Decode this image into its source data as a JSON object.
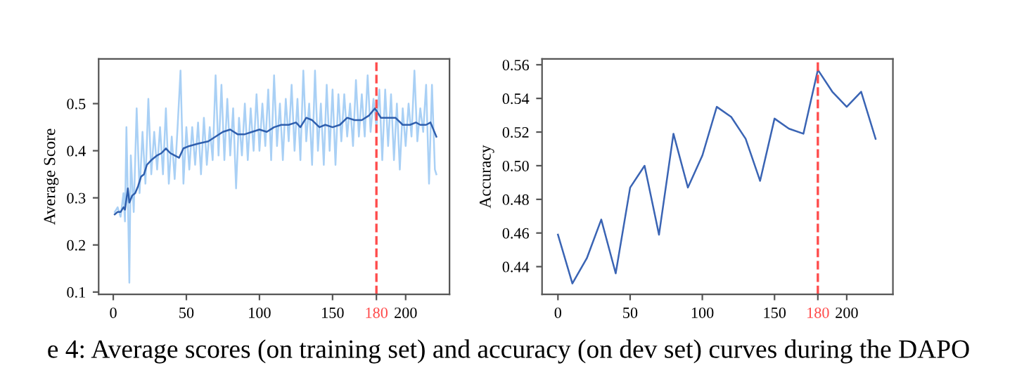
{
  "chart_data": [
    {
      "type": "line",
      "ylabel": "Average Score",
      "xlim": [
        -10,
        230
      ],
      "ylim": [
        0.095,
        0.595
      ],
      "xticks": [
        0,
        50,
        100,
        150,
        180,
        200
      ],
      "yticks": [
        0.1,
        0.2,
        0.3,
        0.4,
        0.5
      ],
      "grid": false,
      "legend": false,
      "ref_lines": [
        {
          "axis": "x",
          "value": 180,
          "color": "#ff4b4b",
          "line_style": "dashed"
        }
      ],
      "series": [
        {
          "color": "#a9d0f5",
          "x": [
            1,
            3,
            5,
            7,
            8,
            9,
            10,
            11,
            12,
            14,
            16,
            18,
            20,
            22,
            24,
            26,
            28,
            30,
            32,
            34,
            36,
            38,
            40,
            42,
            44,
            46,
            48,
            50,
            52,
            54,
            56,
            58,
            60,
            62,
            64,
            66,
            68,
            70,
            72,
            74,
            76,
            78,
            80,
            82,
            84,
            86,
            88,
            90,
            92,
            94,
            96,
            98,
            100,
            102,
            104,
            106,
            108,
            110,
            112,
            114,
            116,
            118,
            120,
            122,
            124,
            126,
            128,
            130,
            132,
            134,
            136,
            138,
            140,
            142,
            144,
            146,
            148,
            150,
            152,
            154,
            156,
            158,
            160,
            162,
            164,
            166,
            168,
            170,
            172,
            174,
            176,
            178,
            180,
            182,
            184,
            186,
            188,
            190,
            192,
            194,
            196,
            198,
            200,
            202,
            204,
            206,
            208,
            210,
            212,
            214,
            216,
            218,
            220,
            221
          ],
          "values": [
            0.27,
            0.28,
            0.26,
            0.31,
            0.25,
            0.45,
            0.3,
            0.12,
            0.39,
            0.27,
            0.49,
            0.31,
            0.44,
            0.33,
            0.51,
            0.35,
            0.44,
            0.36,
            0.45,
            0.35,
            0.49,
            0.33,
            0.43,
            0.34,
            0.45,
            0.57,
            0.33,
            0.45,
            0.36,
            0.45,
            0.37,
            0.46,
            0.35,
            0.47,
            0.37,
            0.45,
            0.38,
            0.56,
            0.39,
            0.54,
            0.38,
            0.51,
            0.39,
            0.49,
            0.32,
            0.47,
            0.39,
            0.5,
            0.38,
            0.49,
            0.4,
            0.52,
            0.4,
            0.5,
            0.41,
            0.53,
            0.38,
            0.56,
            0.41,
            0.5,
            0.38,
            0.51,
            0.42,
            0.54,
            0.4,
            0.51,
            0.38,
            0.57,
            0.42,
            0.5,
            0.37,
            0.57,
            0.4,
            0.5,
            0.37,
            0.54,
            0.4,
            0.53,
            0.37,
            0.52,
            0.42,
            0.52,
            0.43,
            0.5,
            0.41,
            0.55,
            0.43,
            0.52,
            0.43,
            0.56,
            0.44,
            0.51,
            0.45,
            0.53,
            0.38,
            0.53,
            0.41,
            0.52,
            0.38,
            0.5,
            0.36,
            0.49,
            0.41,
            0.5,
            0.43,
            0.57,
            0.42,
            0.49,
            0.44,
            0.54,
            0.33,
            0.54,
            0.36,
            0.35
          ]
        },
        {
          "color": "#2f5fae",
          "x": [
            1,
            3,
            5,
            7,
            8,
            10,
            11,
            13,
            15,
            17,
            19,
            21,
            23,
            26,
            30,
            33,
            36,
            39,
            42,
            45,
            48,
            52,
            58,
            65,
            70,
            75,
            80,
            85,
            90,
            95,
            100,
            105,
            110,
            115,
            120,
            125,
            128,
            132,
            136,
            141,
            145,
            150,
            155,
            160,
            165,
            170,
            175,
            179,
            183,
            188,
            193,
            198,
            203,
            207,
            210,
            214,
            217,
            221
          ],
          "values": [
            0.265,
            0.27,
            0.27,
            0.28,
            0.275,
            0.32,
            0.29,
            0.305,
            0.31,
            0.325,
            0.345,
            0.35,
            0.37,
            0.38,
            0.39,
            0.395,
            0.405,
            0.395,
            0.39,
            0.385,
            0.405,
            0.41,
            0.415,
            0.42,
            0.43,
            0.44,
            0.445,
            0.435,
            0.435,
            0.44,
            0.445,
            0.44,
            0.45,
            0.455,
            0.455,
            0.46,
            0.45,
            0.47,
            0.465,
            0.45,
            0.455,
            0.45,
            0.455,
            0.47,
            0.465,
            0.465,
            0.475,
            0.49,
            0.47,
            0.47,
            0.47,
            0.455,
            0.455,
            0.46,
            0.455,
            0.455,
            0.46,
            0.43
          ]
        }
      ]
    },
    {
      "type": "line",
      "ylabel": "Accuracy",
      "xlim": [
        -11,
        232
      ],
      "ylim": [
        0.4235,
        0.5635
      ],
      "xticks": [
        0,
        50,
        100,
        150,
        180,
        200
      ],
      "yticks": [
        {
          "value": 0.44,
          "label": "0.44"
        },
        {
          "value": 0.46,
          "label": "0.46"
        },
        {
          "value": 0.48,
          "label": "0.48"
        },
        {
          "value": 0.5,
          "label": "0.50"
        },
        {
          "value": 0.52,
          "label": "0.52"
        },
        {
          "value": 0.54,
          "label": "0.54"
        },
        {
          "value": 0.56,
          "label": "0.56"
        }
      ],
      "grid": false,
      "legend": false,
      "ref_lines": [
        {
          "axis": "x",
          "value": 180,
          "color": "#ff4b4b",
          "line_style": "dashed"
        }
      ],
      "annotations": [
        "e 4: Average scores (on training set) and accuracy (on dev set) curves during the DAPO"
      ],
      "series": [
        {
          "color": "#3a64b4",
          "x": [
            0,
            10,
            20,
            30,
            40,
            50,
            60,
            70,
            80,
            90,
            100,
            110,
            120,
            130,
            140,
            150,
            160,
            170,
            180,
            190,
            200,
            210,
            220
          ],
          "values": [
            0.459,
            0.43,
            0.445,
            0.468,
            0.436,
            0.487,
            0.5,
            0.459,
            0.519,
            0.487,
            0.506,
            0.535,
            0.529,
            0.516,
            0.491,
            0.528,
            0.522,
            0.519,
            0.557,
            0.544,
            0.535,
            0.544,
            0.516
          ]
        }
      ]
    }
  ]
}
